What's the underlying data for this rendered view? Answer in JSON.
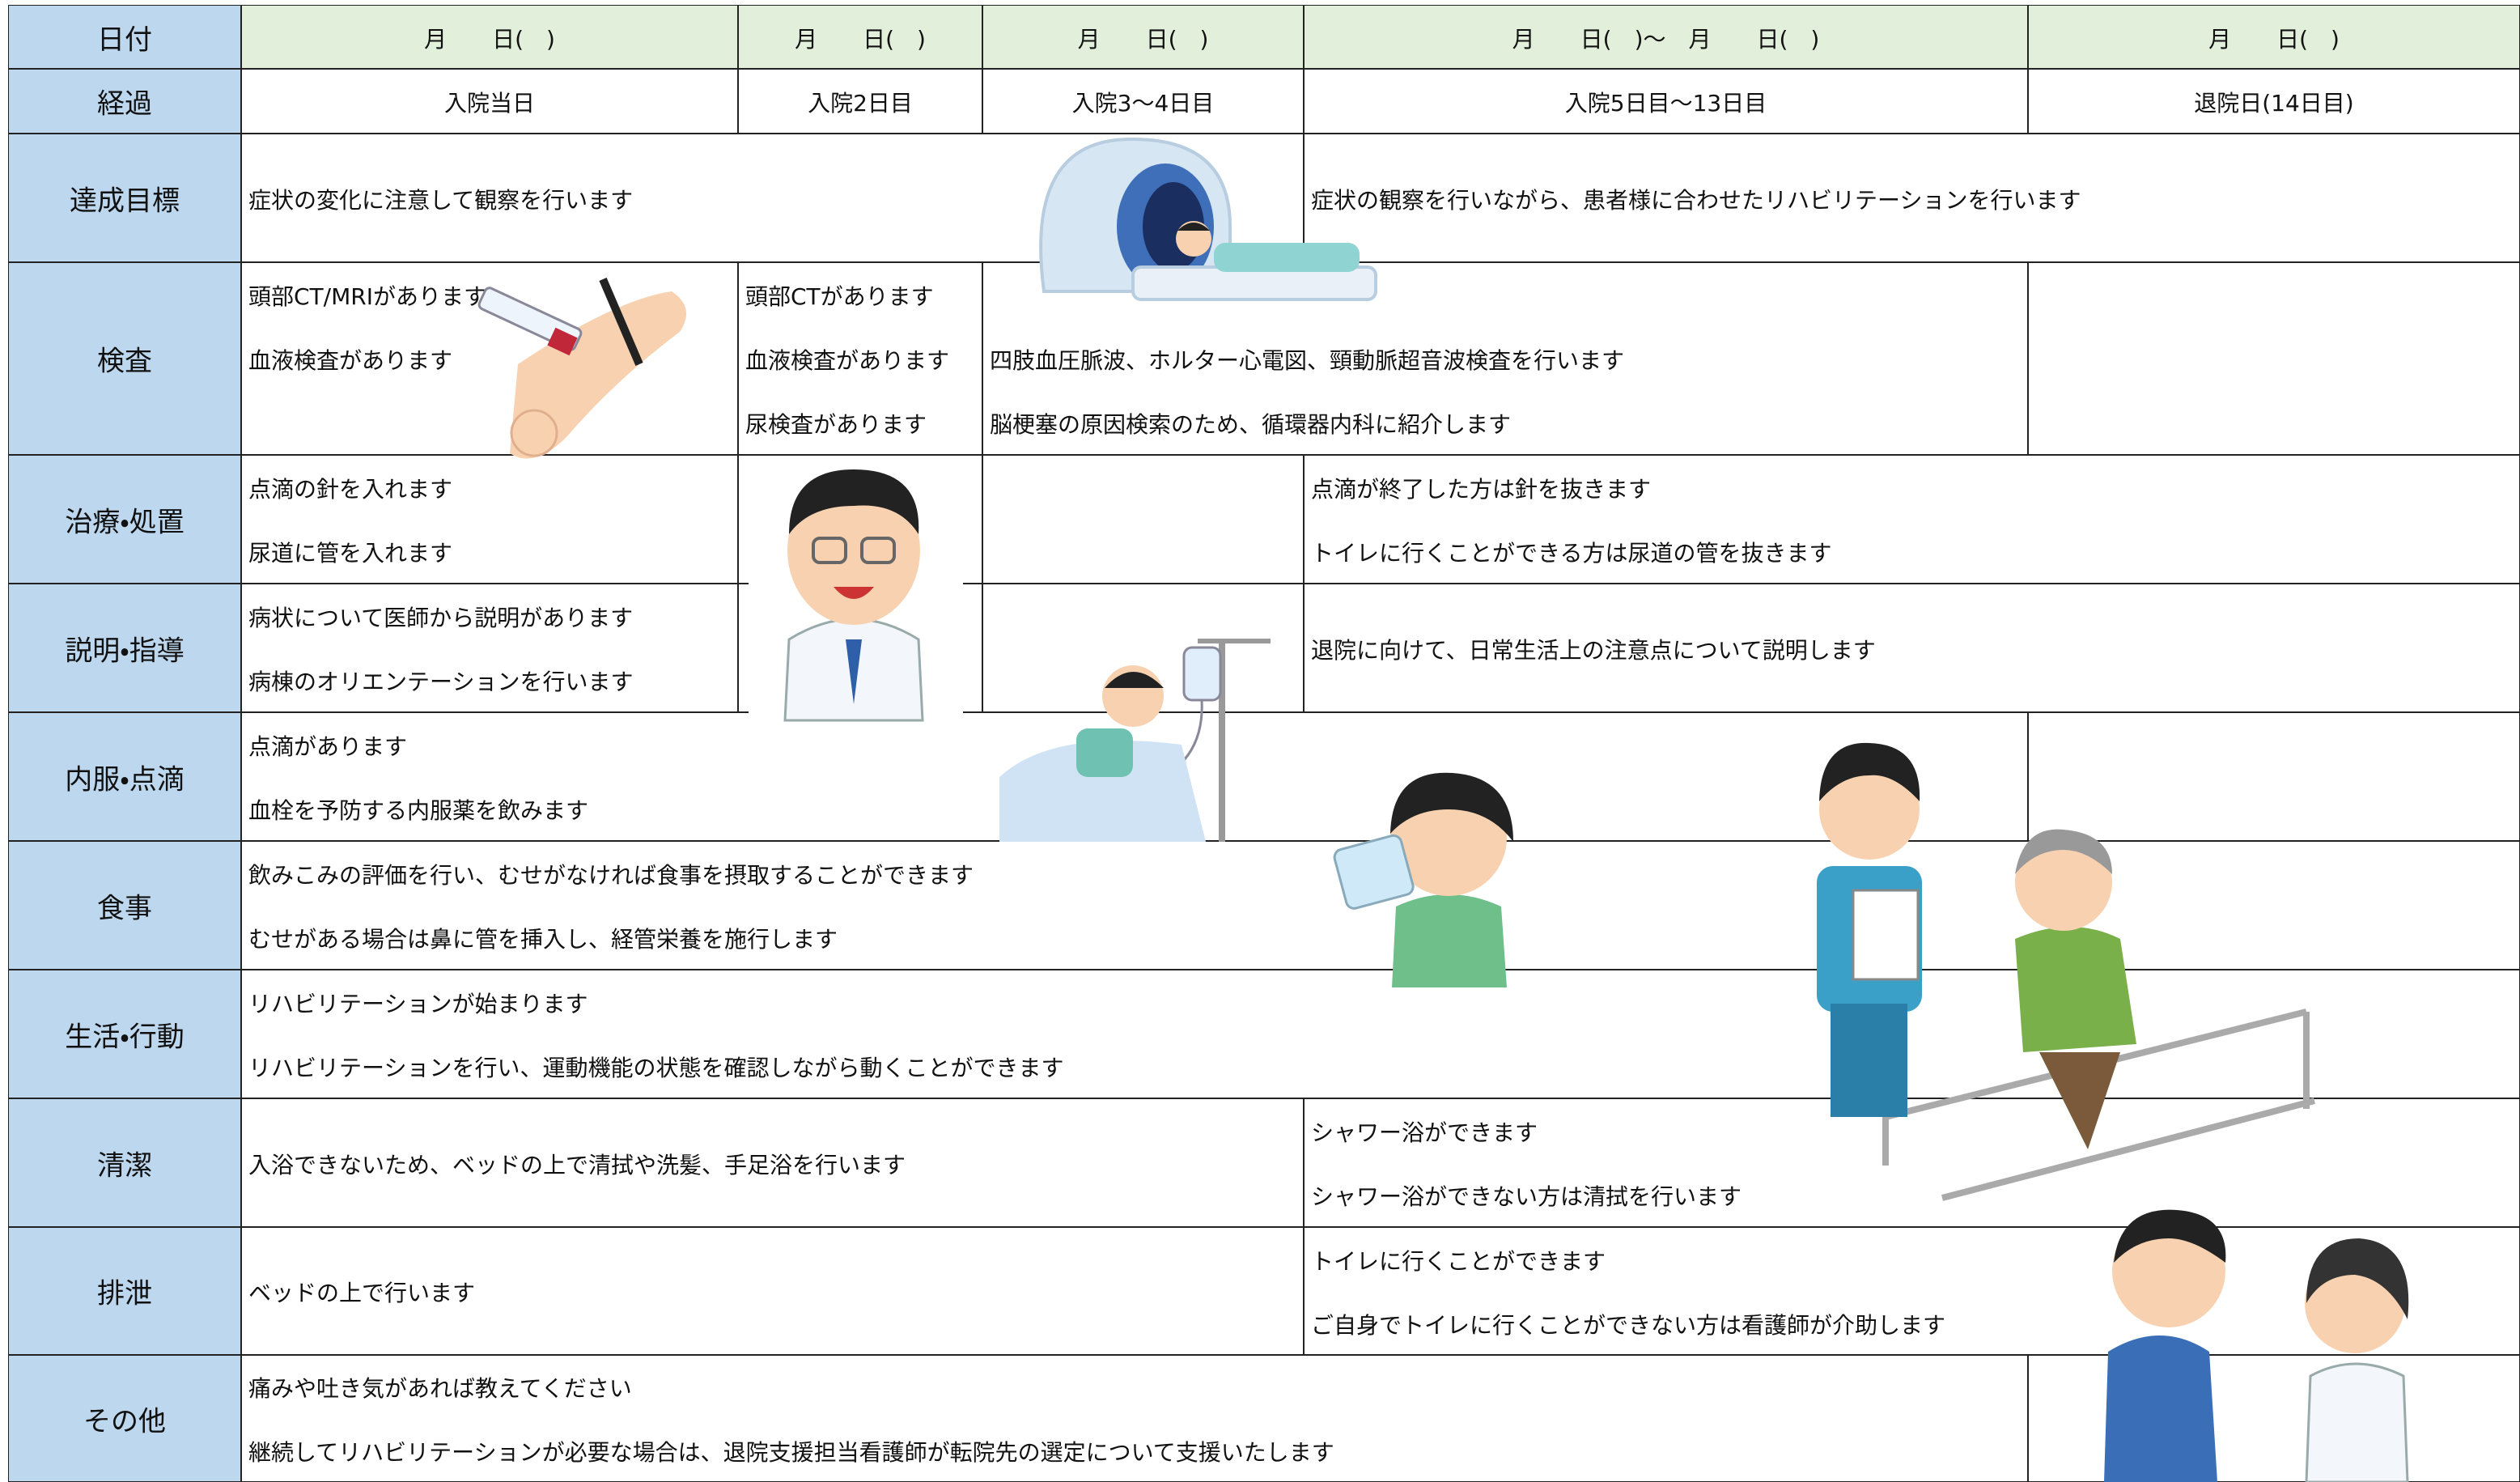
{
  "rows": [
    {
      "label": "日付",
      "cells": [
        {
          "lines": [
            "月　　日(　)"
          ]
        },
        {
          "lines": [
            "月　　日(　)"
          ]
        },
        {
          "lines": [
            "月　　日(　)"
          ]
        },
        {
          "lines": [
            "月　　日(　)～　月　　日(　)"
          ]
        },
        {
          "lines": [
            "月　　日(　)"
          ]
        }
      ]
    },
    {
      "label": "経過",
      "cells": [
        {
          "lines": [
            "入院当日"
          ]
        },
        {
          "lines": [
            "入院2日目"
          ]
        },
        {
          "lines": [
            "入院3～4日目"
          ]
        },
        {
          "lines": [
            "入院5日目～13日目"
          ]
        },
        {
          "lines": [
            "退院日(14日目)"
          ]
        }
      ]
    },
    {
      "label": "達成目標",
      "cells": [
        {
          "lines": [
            "症状の変化に注意して観察を行います"
          ]
        },
        {
          "lines": [
            "症状の観察を行いながら、患者様に合わせたリハビリテーションを行います"
          ]
        }
      ]
    },
    {
      "label": "検査",
      "cells": [
        {
          "lines": [
            "頭部CT/MRIがあります",
            "血液検査があります"
          ]
        },
        {
          "lines": [
            "頭部CTがあります",
            "血液検査があります",
            "尿検査があります"
          ]
        },
        {
          "lines": [
            "四肢血圧脈波、ホルター心電図、頸動脈超音波検査を行います",
            "脳梗塞の原因検索のため、循環器内科に紹介します"
          ]
        },
        {
          "lines": []
        }
      ]
    },
    {
      "label": "治療・処置",
      "cells": [
        {
          "lines": [
            "点滴の針を入れます",
            "尿道に管を入れます"
          ]
        },
        {
          "lines": []
        },
        {
          "lines": []
        },
        {
          "lines": [
            "点滴が終了した方は針を抜きます",
            "トイレに行くことができる方は尿道の管を抜きます"
          ]
        }
      ]
    },
    {
      "label": "説明・指導",
      "cells": [
        {
          "lines": [
            "病状について医師から説明があります",
            "病棟のオリエンテーションを行います"
          ]
        },
        {
          "lines": []
        },
        {
          "lines": []
        },
        {
          "lines": [
            "退院に向けて、日常生活上の注意点について説明します"
          ]
        }
      ]
    },
    {
      "label": "内服・点滴",
      "cells": [
        {
          "lines": [
            "点滴があります",
            "血栓を予防する内服薬を飲みます"
          ]
        },
        {
          "lines": []
        }
      ]
    },
    {
      "label": "食事",
      "cells": [
        {
          "lines": [
            "飲みこみの評価を行い、むせがなければ食事を摂取することができます",
            "むせがある場合は鼻に管を挿入し、経管栄養を施行します"
          ]
        }
      ]
    },
    {
      "label": "生活・行動",
      "cells": [
        {
          "lines": [
            "リハビリテーションが始まります",
            "リハビリテーションを行い、運動機能の状態を確認しながら動くことができます"
          ]
        }
      ]
    },
    {
      "label": "清潔",
      "cells": [
        {
          "lines": [
            "入浴できないため、ベッドの上で清拭や洗髪、手足浴を行います"
          ]
        },
        {
          "lines": [
            "シャワー浴ができます",
            "シャワー浴ができない方は清拭を行います"
          ]
        }
      ]
    },
    {
      "label": "排泄",
      "cells": [
        {
          "lines": [
            "ベッドの上で行います"
          ]
        },
        {
          "lines": [
            "トイレに行くことができます",
            "ご自身でトイレに行くことができない方は看護師が介助します"
          ]
        }
      ]
    },
    {
      "label": "その他",
      "cells": [
        {
          "lines": [
            "痛みや吐き気があれば教えてください",
            "継続してリハビリテーションが必要な場合は、退院支援担当看護師が転院先の選定について支援いたします"
          ]
        },
        {
          "lines": []
        }
      ]
    }
  ]
}
